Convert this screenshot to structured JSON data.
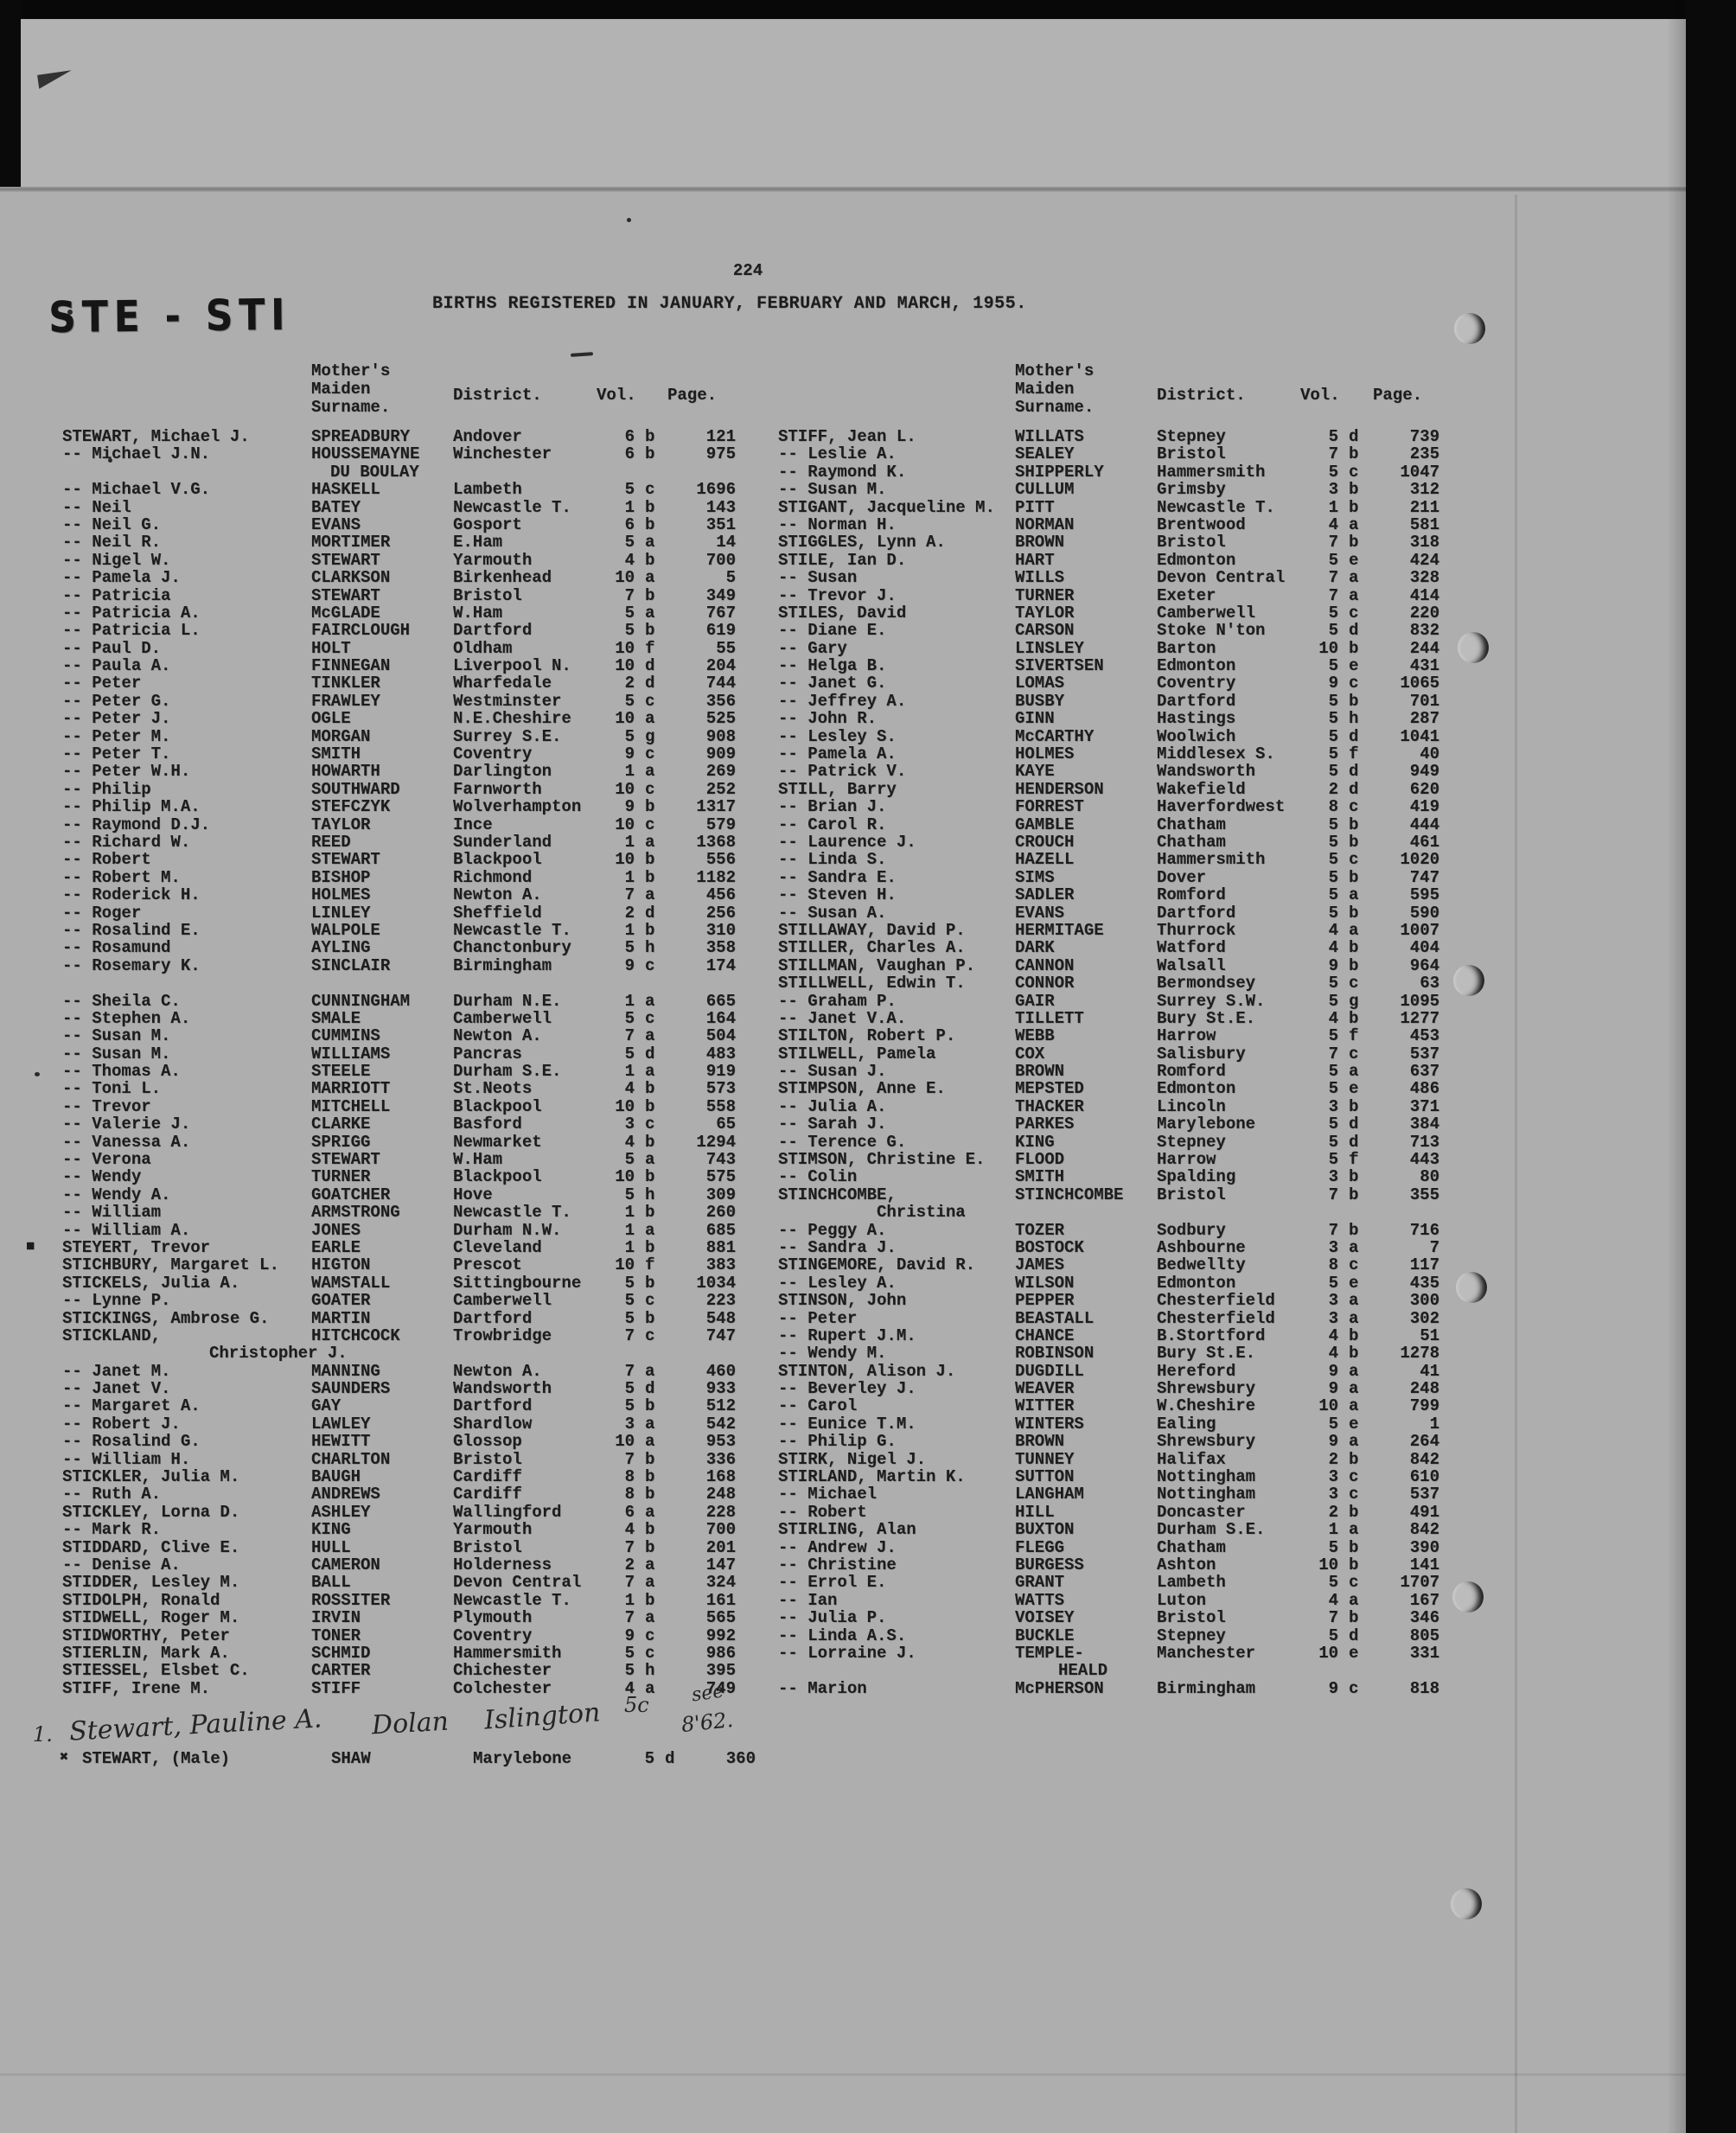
{
  "page": {
    "number": "224",
    "title": "BIRTHS REGISTERED IN JANUARY, FEBRUARY AND MARCH, 1955.",
    "section": "STE - STI"
  },
  "headers": {
    "mother_line1": "Mother's",
    "mother_line2": "Maiden",
    "mother_line3": "Surname.",
    "district": "District.",
    "vol": "Vol.",
    "page": "Page."
  },
  "columns": {
    "left": [
      [
        "STEWART, Michael J.",
        "SPREADBURY",
        "Andover",
        "6",
        "b",
        "121"
      ],
      [
        "-- Michael J.N.",
        "HOUSSEMAYNE",
        "Winchester",
        "6",
        "b",
        "975"
      ],
      {
        "c": "s",
        "i": 22,
        "t": "DU BOULAY"
      },
      [
        "-- Michael V.G.",
        "HASKELL",
        "Lambeth",
        "5",
        "c",
        "1696"
      ],
      [
        "-- Neil",
        "BATEY",
        "Newcastle T.",
        "1",
        "b",
        "143"
      ],
      [
        "-- Neil G.",
        "EVANS",
        "Gosport",
        "6",
        "b",
        "351"
      ],
      [
        "-- Neil R.",
        "MORTIMER",
        "E.Ham",
        "5",
        "a",
        "14"
      ],
      [
        "-- Nigel W.",
        "STEWART",
        "Yarmouth",
        "4",
        "b",
        "700"
      ],
      [
        "-- Pamela J.",
        "CLARKSON",
        "Birkenhead",
        "10",
        "a",
        "5"
      ],
      [
        "-- Patricia",
        "STEWART",
        "Bristol",
        "7",
        "b",
        "349"
      ],
      [
        "-- Patricia A.",
        "McGLADE",
        "W.Ham",
        "5",
        "a",
        "767"
      ],
      [
        "-- Patricia L.",
        "FAIRCLOUGH",
        "Dartford",
        "5",
        "b",
        "619"
      ],
      [
        "-- Paul D.",
        "HOLT",
        "Oldham",
        "10",
        "f",
        "55"
      ],
      [
        "-- Paula A.",
        "FINNEGAN",
        "Liverpool N.",
        "10",
        "d",
        "204"
      ],
      [
        "-- Peter",
        "TINKLER",
        "Wharfedale",
        "2",
        "d",
        "744"
      ],
      [
        "-- Peter G.",
        "FRAWLEY",
        "Westminster",
        "5",
        "c",
        "356"
      ],
      [
        "-- Peter J.",
        "OGLE",
        "N.E.Cheshire",
        "10",
        "a",
        "525"
      ],
      [
        "-- Peter M.",
        "MORGAN",
        "Surrey S.E.",
        "5",
        "g",
        "908"
      ],
      [
        "-- Peter T.",
        "SMITH",
        "Coventry",
        "9",
        "c",
        "909"
      ],
      [
        "-- Peter W.H.",
        "HOWARTH",
        "Darlington",
        "1",
        "a",
        "269"
      ],
      [
        "-- Philip",
        "SOUTHWARD",
        "Farnworth",
        "10",
        "c",
        "252"
      ],
      [
        "-- Philip M.A.",
        "STEFCZYK",
        "Wolverhampton",
        "9",
        "b",
        "1317"
      ],
      [
        "-- Raymond D.J.",
        "TAYLOR",
        "Ince",
        "10",
        "c",
        "579"
      ],
      [
        "-- Richard W.",
        "REED",
        "Sunderland",
        "1",
        "a",
        "1368"
      ],
      [
        "-- Robert",
        "STEWART",
        "Blackpool",
        "10",
        "b",
        "556"
      ],
      [
        "-- Robert M.",
        "BISHOP",
        "Richmond",
        "1",
        "b",
        "1182"
      ],
      [
        "-- Roderick H.",
        "HOLMES",
        "Newton A.",
        "7",
        "a",
        "456"
      ],
      [
        "-- Roger",
        "LINLEY",
        "Sheffield",
        "2",
        "d",
        "256"
      ],
      [
        "-- Rosalind E.",
        "WALPOLE",
        "Newcastle T.",
        "1",
        "b",
        "310"
      ],
      [
        "-- Rosamund",
        "AYLING",
        "Chanctonbury",
        "5",
        "h",
        "358"
      ],
      [
        "-- Rosemary K.",
        "SINCLAIR",
        "Birmingham",
        "9",
        "c",
        "174"
      ],
      {
        "g": 1
      },
      [
        "-- Sheila C.",
        "CUNNINGHAM",
        "Durham N.E.",
        "1",
        "a",
        "665"
      ],
      [
        "-- Stephen A.",
        "SMALE",
        "Camberwell",
        "5",
        "c",
        "164"
      ],
      [
        "-- Susan M.",
        "CUMMINS",
        "Newton A.",
        "7",
        "a",
        "504"
      ],
      [
        "-- Susan M.",
        "WILLIAMS",
        "Pancras",
        "5",
        "d",
        "483"
      ],
      [
        "-- Thomas A.",
        "STEELE",
        "Durham S.E.",
        "1",
        "a",
        "919"
      ],
      [
        "-- Toni L.",
        "MARRIOTT",
        "St.Neots",
        "4",
        "b",
        "573"
      ],
      [
        "-- Trevor",
        "MITCHELL",
        "Blackpool",
        "10",
        "b",
        "558"
      ],
      [
        "-- Valerie J.",
        "CLARKE",
        "Basford",
        "3",
        "c",
        "65"
      ],
      [
        "-- Vanessa A.",
        "SPRIGG",
        "Newmarket",
        "4",
        "b",
        "1294"
      ],
      [
        "-- Verona",
        "STEWART",
        "W.Ham",
        "5",
        "a",
        "743"
      ],
      [
        "-- Wendy",
        "TURNER",
        "Blackpool",
        "10",
        "b",
        "575"
      ],
      [
        "-- Wendy A.",
        "GOATCHER",
        "Hove",
        "5",
        "h",
        "309"
      ],
      [
        "-- William",
        "ARMSTRONG",
        "Newcastle T.",
        "1",
        "b",
        "260"
      ],
      [
        "-- William A.",
        "JONES",
        "Durham N.W.",
        "1",
        "a",
        "685"
      ],
      [
        "STEYERT, Trevor",
        "EARLE",
        "Cleveland",
        "1",
        "b",
        "881",
        "■"
      ],
      [
        "STICHBURY, Margaret L.",
        "HIGTON",
        "Prescot",
        "10",
        "f",
        "383"
      ],
      [
        "STICKELS, Julia A.",
        "WAMSTALL",
        "Sittingbourne",
        "5",
        "b",
        "1034"
      ],
      [
        "-- Lynne P.",
        "GOATER",
        "Camberwell",
        "5",
        "c",
        "223"
      ],
      [
        "STICKINGS, Ambrose G.",
        "MARTIN",
        "Dartford",
        "5",
        "b",
        "548"
      ],
      [
        "STICKLAND,",
        "HITCHCOCK",
        "Trowbridge",
        "7",
        "c",
        "747"
      ],
      {
        "c": "n",
        "i": 170,
        "t": "Christopher J."
      },
      [
        "-- Janet M.",
        "MANNING",
        "Newton A.",
        "7",
        "a",
        "460"
      ],
      [
        "-- Janet V.",
        "SAUNDERS",
        "Wandsworth",
        "5",
        "d",
        "933"
      ],
      [
        "-- Margaret A.",
        "GAY",
        "Dartford",
        "5",
        "b",
        "512"
      ],
      [
        "-- Robert J.",
        "LAWLEY",
        "Shardlow",
        "3",
        "a",
        "542"
      ],
      [
        "-- Rosalind G.",
        "HEWITT",
        "Glossop",
        "10",
        "a",
        "953"
      ],
      [
        "-- William H.",
        "CHARLTON",
        "Bristol",
        "7",
        "b",
        "336"
      ],
      [
        "STICKLER, Julia M.",
        "BAUGH",
        "Cardiff",
        "8",
        "b",
        "168"
      ],
      [
        "-- Ruth A.",
        "ANDREWS",
        "Cardiff",
        "8",
        "b",
        "248"
      ],
      [
        "STICKLEY, Lorna D.",
        "ASHLEY",
        "Wallingford",
        "6",
        "a",
        "228"
      ],
      [
        "-- Mark R.",
        "KING",
        "Yarmouth",
        "4",
        "b",
        "700"
      ],
      [
        "STIDDARD, Clive E.",
        "HULL",
        "Bristol",
        "7",
        "b",
        "201"
      ],
      [
        "-- Denise A.",
        "CAMERON",
        "Holderness",
        "2",
        "a",
        "147"
      ],
      [
        "STIDDER, Lesley M.",
        "BALL",
        "Devon Central",
        "7",
        "a",
        "324"
      ],
      [
        "STIDOLPH, Ronald",
        "ROSSITER",
        "Newcastle T.",
        "1",
        "b",
        "161"
      ],
      [
        "STIDWELL, Roger M.",
        "IRVIN",
        "Plymouth",
        "7",
        "a",
        "565"
      ],
      [
        "STIDWORTHY, Peter",
        "TONER",
        "Coventry",
        "9",
        "c",
        "992"
      ],
      [
        "STIERLIN, Mark A.",
        "SCHMID",
        "Hammersmith",
        "5",
        "c",
        "986"
      ],
      [
        "STIESSEL, Elsbet C.",
        "CARTER",
        "Chichester",
        "5",
        "h",
        "395"
      ],
      [
        "STIFF, Irene M.",
        "STIFF",
        "Colchester",
        "4",
        "a",
        "749"
      ]
    ],
    "right": [
      [
        "STIFF, Jean L.",
        "WILLATS",
        "Stepney",
        "5",
        "d",
        "739"
      ],
      [
        "-- Leslie A.",
        "SEALEY",
        "Bristol",
        "7",
        "b",
        "235"
      ],
      [
        "-- Raymond K.",
        "SHIPPERLY",
        "Hammersmith",
        "5",
        "c",
        "1047"
      ],
      [
        "-- Susan M.",
        "CULLUM",
        "Grimsby",
        "3",
        "b",
        "312"
      ],
      [
        "STIGANT, Jacqueline M.",
        "PITT",
        "Newcastle T.",
        "1",
        "b",
        "211"
      ],
      [
        "-- Norman H.",
        "NORMAN",
        "Brentwood",
        "4",
        "a",
        "581"
      ],
      [
        "STIGGLES, Lynn A.",
        "BROWN",
        "Bristol",
        "7",
        "b",
        "318"
      ],
      [
        "STILE, Ian D.",
        "HART",
        "Edmonton",
        "5",
        "e",
        "424"
      ],
      [
        "-- Susan",
        "WILLS",
        "Devon Central",
        "7",
        "a",
        "328"
      ],
      [
        "-- Trevor J.",
        "TURNER",
        "Exeter",
        "7",
        "a",
        "414"
      ],
      [
        "STILES, David",
        "TAYLOR",
        "Camberwell",
        "5",
        "c",
        "220"
      ],
      [
        "-- Diane E.",
        "CARSON",
        "Stoke N'ton",
        "5",
        "d",
        "832"
      ],
      [
        "-- Gary",
        "LINSLEY",
        "Barton",
        "10",
        "b",
        "244"
      ],
      [
        "-- Helga B.",
        "SIVERTSEN",
        "Edmonton",
        "5",
        "e",
        "431"
      ],
      [
        "-- Janet G.",
        "LOMAS",
        "Coventry",
        "9",
        "c",
        "1065"
      ],
      [
        "-- Jeffrey A.",
        "BUSBY",
        "Dartford",
        "5",
        "b",
        "701"
      ],
      [
        "-- John R.",
        "GINN",
        "Hastings",
        "5",
        "h",
        "287"
      ],
      [
        "-- Lesley S.",
        "McCARTHY",
        "Woolwich",
        "5",
        "d",
        "1041"
      ],
      [
        "-- Pamela A.",
        "HOLMES",
        "Middlesex S.",
        "5",
        "f",
        "40"
      ],
      [
        "-- Patrick V.",
        "KAYE",
        "Wandsworth",
        "5",
        "d",
        "949"
      ],
      [
        "STILL, Barry",
        "HENDERSON",
        "Wakefield",
        "2",
        "d",
        "620"
      ],
      [
        "-- Brian J.",
        "FORREST",
        "Haverfordwest",
        "8",
        "c",
        "419"
      ],
      [
        "-- Carol R.",
        "GAMBLE",
        "Chatham",
        "5",
        "b",
        "444"
      ],
      [
        "-- Laurence J.",
        "CROUCH",
        "Chatham",
        "5",
        "b",
        "461"
      ],
      [
        "-- Linda S.",
        "HAZELL",
        "Hammersmith",
        "5",
        "c",
        "1020"
      ],
      [
        "-- Sandra E.",
        "SIMS",
        "Dover",
        "5",
        "b",
        "747"
      ],
      [
        "-- Steven H.",
        "SADLER",
        "Romford",
        "5",
        "a",
        "595"
      ],
      [
        "-- Susan A.",
        "EVANS",
        "Dartford",
        "5",
        "b",
        "590"
      ],
      [
        "STILLAWAY, David P.",
        "HERMITAGE",
        "Thurrock",
        "4",
        "a",
        "1007"
      ],
      [
        "STILLER, Charles A.",
        "DARK",
        "Watford",
        "4",
        "b",
        "404"
      ],
      [
        "STILLMAN, Vaughan P.",
        "CANNON",
        "Walsall",
        "9",
        "b",
        "964"
      ],
      [
        "STILLWELL, Edwin T.",
        "CONNOR",
        "Bermondsey",
        "5",
        "c",
        "63"
      ],
      [
        "-- Graham P.",
        "GAIR",
        "Surrey S.W.",
        "5",
        "g",
        "1095"
      ],
      [
        "-- Janet V.A.",
        "TILLETT",
        "Bury St.E.",
        "4",
        "b",
        "1277"
      ],
      [
        "STILTON, Robert P.",
        "WEBB",
        "Harrow",
        "5",
        "f",
        "453"
      ],
      [
        "STILWELL, Pamela",
        "COX",
        "Salisbury",
        "7",
        "c",
        "537"
      ],
      [
        "-- Susan J.",
        "BROWN",
        "Romford",
        "5",
        "a",
        "637"
      ],
      [
        "STIMPSON, Anne E.",
        "MEPSTED",
        "Edmonton",
        "5",
        "e",
        "486"
      ],
      [
        "-- Julia A.",
        "THACKER",
        "Lincoln",
        "3",
        "b",
        "371"
      ],
      [
        "-- Sarah J.",
        "PARKES",
        "Marylebone",
        "5",
        "d",
        "384"
      ],
      [
        "-- Terence G.",
        "KING",
        "Stepney",
        "5",
        "d",
        "713"
      ],
      [
        "STIMSON, Christine E.",
        "FLOOD",
        "Harrow",
        "5",
        "f",
        "443"
      ],
      [
        "-- Colin",
        "SMITH",
        "Spalding",
        "3",
        "b",
        "80"
      ],
      [
        "STINCHCOMBE,",
        "STINCHCOMBE",
        "Bristol",
        "7",
        "b",
        "355"
      ],
      {
        "c": "n",
        "i": 114,
        "t": "Christina"
      },
      [
        "-- Peggy A.",
        "TOZER",
        "Sodbury",
        "7",
        "b",
        "716"
      ],
      [
        "-- Sandra J.",
        "BOSTOCK",
        "Ashbourne",
        "3",
        "a",
        "7"
      ],
      [
        "STINGEMORE, David R.",
        "JAMES",
        "Bedwellty",
        "8",
        "c",
        "117"
      ],
      [
        "-- Lesley A.",
        "WILSON",
        "Edmonton",
        "5",
        "e",
        "435"
      ],
      [
        "STINSON, John",
        "PEPPER",
        "Chesterfield",
        "3",
        "a",
        "300"
      ],
      [
        "-- Peter",
        "BEASTALL",
        "Chesterfield",
        "3",
        "a",
        "302"
      ],
      [
        "-- Rupert J.M.",
        "CHANCE",
        "B.Stortford",
        "4",
        "b",
        "51"
      ],
      [
        "-- Wendy M.",
        "ROBINSON",
        "Bury St.E.",
        "4",
        "b",
        "1278"
      ],
      [
        "STINTON, Alison J.",
        "DUGDILL",
        "Hereford",
        "9",
        "a",
        "41"
      ],
      [
        "-- Beverley J.",
        "WEAVER",
        "Shrewsbury",
        "9",
        "a",
        "248"
      ],
      [
        "-- Carol",
        "WITTER",
        "W.Cheshire",
        "10",
        "a",
        "799"
      ],
      [
        "-- Eunice T.M.",
        "WINTERS",
        "Ealing",
        "5",
        "e",
        "1"
      ],
      [
        "-- Philip G.",
        "BROWN",
        "Shrewsbury",
        "9",
        "a",
        "264"
      ],
      [
        "STIRK, Nigel J.",
        "TUNNEY",
        "Halifax",
        "2",
        "b",
        "842"
      ],
      [
        "STIRLAND, Martin K.",
        "SUTTON",
        "Nottingham",
        "3",
        "c",
        "610"
      ],
      [
        "-- Michael",
        "LANGHAM",
        "Nottingham",
        "3",
        "c",
        "537"
      ],
      [
        "-- Robert",
        "HILL",
        "Doncaster",
        "2",
        "b",
        "491"
      ],
      [
        "STIRLING, Alan",
        "BUXTON",
        "Durham S.E.",
        "1",
        "a",
        "842"
      ],
      [
        "-- Andrew J.",
        "FLEGG",
        "Chatham",
        "5",
        "b",
        "390"
      ],
      [
        "-- Christine",
        "BURGESS",
        "Ashton",
        "10",
        "b",
        "141"
      ],
      [
        "-- Errol E.",
        "GRANT",
        "Lambeth",
        "5",
        "c",
        "1707"
      ],
      [
        "-- Ian",
        "WATTS",
        "Luton",
        "4",
        "a",
        "167"
      ],
      [
        "-- Julia P.",
        "VOISEY",
        "Bristol",
        "7",
        "b",
        "346"
      ],
      [
        "-- Linda A.S.",
        "BUCKLE",
        "Stepney",
        "5",
        "d",
        "805"
      ],
      [
        "-- Lorraine J.",
        "TEMPLE-",
        "Manchester",
        "10",
        "e",
        "331"
      ],
      {
        "c": "s",
        "i": 50,
        "t": "HEALD"
      },
      [
        "-- Marion",
        "McPHERSON",
        "Birmingham",
        "9",
        "c",
        "818"
      ]
    ]
  },
  "handwritten": {
    "index": "1.",
    "name": "Stewart, Pauline A.",
    "surname": "Dolan",
    "district": "Islington",
    "vol": "5c",
    "page_note_line1": "see",
    "page_note_line2": "8'62."
  },
  "final_entry": {
    "mark": "✖",
    "n": "STEWART, (Male)",
    "s": "SHAW",
    "d": "Marylebone",
    "v": "5",
    "l": "d",
    "p": "360"
  }
}
